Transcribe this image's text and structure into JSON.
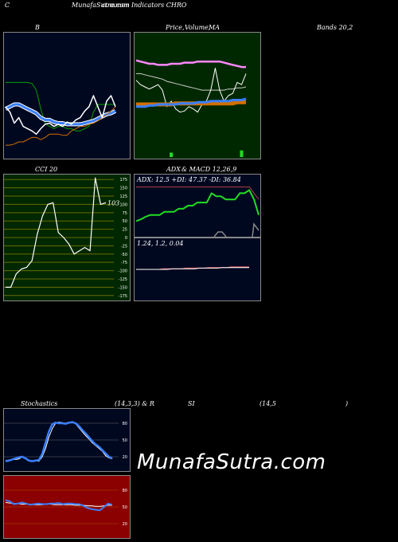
{
  "header": {
    "left": "C",
    "title": "MunafaSutra.com",
    "subtitle": "common Indicators CHRO"
  },
  "labels": {
    "bb": "B",
    "price": "Price,",
    "volume": "Volume,",
    "ma": "MA",
    "bands": "Bands 20,2",
    "cci": "CCI 20",
    "adx": "ADX",
    "macd": "& MACD 12,26,9",
    "stoch": "Stochastics",
    "stoch_params": "(14,3,3) & R",
    "si": "SI",
    "rsi_params": "(14,5",
    "close_paren": ")"
  },
  "watermark": "MunafaSutra.com",
  "colors": {
    "bb_bg": "#000820",
    "ma_bg": "#002800",
    "cci_bg": "#002800",
    "adx_bg": "#000820",
    "stoch_bg": "#000820",
    "rsi_bg": "#8b0000",
    "blue": "#3a7fff",
    "green": "#22dd22",
    "orange": "#d07000",
    "white": "#ffffff"
  },
  "chart_data": [
    {
      "type": "line",
      "name": "bollinger-bands",
      "series": [
        {
          "values": [
            0.62,
            0.62,
            0.62,
            0.62,
            0.62,
            0.62,
            0.61,
            0.55,
            0.38,
            0.25,
            0.22,
            0.2,
            0.22,
            0.22,
            0.2,
            0.2,
            0.18,
            0.18,
            0.2,
            0.22,
            0.35,
            0.42,
            0.42,
            0.42,
            0.42,
            0.42
          ]
        },
        {
          "values": [
            0.38,
            0.4,
            0.42,
            0.42,
            0.4,
            0.38,
            0.36,
            0.34,
            0.3,
            0.28,
            0.28,
            0.26,
            0.25,
            0.25,
            0.24,
            0.24,
            0.24,
            0.24,
            0.25,
            0.26,
            0.27,
            0.29,
            0.31,
            0.33,
            0.34,
            0.36
          ]
        },
        {
          "values": [
            0.18,
            0.18,
            0.17,
            0.16,
            0.16,
            0.15,
            0.14,
            0.12,
            0.1,
            0.1,
            0.12,
            0.1,
            0.09,
            0.08,
            0.09,
            0.1,
            0.11,
            0.12,
            0.14,
            0.16,
            0.17,
            0.18,
            0.2,
            0.21,
            0.22,
            0.24
          ]
        },
        {
          "values": [
            0.05,
            0.05,
            0.06,
            0.08,
            0.08,
            0.1,
            0.12,
            0.12,
            0.1,
            0.12,
            0.15,
            0.15,
            0.15,
            0.14,
            0.14,
            0.18,
            0.2,
            0.22,
            0.22,
            0.24,
            0.25,
            0.27,
            0.3,
            0.33,
            0.36,
            0.4
          ]
        },
        {
          "values": [
            0.4,
            0.35,
            0.25,
            0.3,
            0.22,
            0.2,
            0.18,
            0.15,
            0.2,
            0.24,
            0.25,
            0.22,
            0.24,
            0.22,
            0.26,
            0.24,
            0.28,
            0.3,
            0.36,
            0.4,
            0.5,
            0.4,
            0.3,
            0.45,
            0.5,
            0.4
          ]
        }
      ]
    },
    {
      "type": "line",
      "name": "price-volume-ma",
      "series": [
        {
          "values": [
            0.82,
            0.81,
            0.8,
            0.79,
            0.79,
            0.78,
            0.78,
            0.78,
            0.79,
            0.79,
            0.79,
            0.8,
            0.8,
            0.8,
            0.81,
            0.81,
            0.81,
            0.81,
            0.81,
            0.81,
            0.8,
            0.79,
            0.78,
            0.77,
            0.76,
            0.76
          ]
        },
        {
          "values": [
            0.7,
            0.7,
            0.69,
            0.68,
            0.67,
            0.66,
            0.65,
            0.63,
            0.62,
            0.61,
            0.6,
            0.59,
            0.58,
            0.57,
            0.56,
            0.55,
            0.55,
            0.55,
            0.55,
            0.55,
            0.55,
            0.56,
            0.56,
            0.57,
            0.57,
            0.58
          ]
        },
        {
          "values": [
            0.64,
            0.6,
            0.58,
            0.56,
            0.58,
            0.6,
            0.55,
            0.4,
            0.45,
            0.38,
            0.35,
            0.36,
            0.4,
            0.38,
            0.35,
            0.42,
            0.45,
            0.55,
            0.75,
            0.55,
            0.45,
            0.5,
            0.52,
            0.62,
            0.6,
            0.7
          ]
        },
        {
          "values": [
            0.42,
            0.42,
            0.42,
            0.42,
            0.42,
            0.42,
            0.42,
            0.42,
            0.42,
            0.43,
            0.43,
            0.43,
            0.43,
            0.43,
            0.43,
            0.43,
            0.43,
            0.43,
            0.43,
            0.43,
            0.43,
            0.43,
            0.43,
            0.44,
            0.44,
            0.44
          ]
        },
        {
          "values": [
            0.4,
            0.4,
            0.4,
            0.41,
            0.41,
            0.42,
            0.42,
            0.42,
            0.42,
            0.42,
            0.43,
            0.43,
            0.43,
            0.43,
            0.44,
            0.44,
            0.44,
            0.45,
            0.45,
            0.45,
            0.45,
            0.45,
            0.46,
            0.46,
            0.46,
            0.47
          ]
        },
        {
          "values": [
            0.0,
            0.0,
            0.0,
            0.0,
            0.0,
            0.0,
            0.0,
            0.0,
            0.04,
            0.0,
            0.0,
            0.0,
            0.0,
            0.0,
            0.0,
            0.0,
            0.0,
            0.0,
            0.0,
            0.0,
            0.0,
            0.0,
            0.0,
            0.0,
            0.06,
            0.0
          ]
        }
      ]
    },
    {
      "type": "line",
      "name": "cci",
      "y_ticks": [
        175,
        150,
        125,
        100,
        75,
        50,
        25,
        0,
        -25,
        -50,
        -75,
        -100,
        -125,
        -150,
        -175
      ],
      "ylim": [
        -190,
        190
      ],
      "last_value_label": "103",
      "series": [
        {
          "values": [
            -150,
            -150,
            -110,
            -95,
            -90,
            -70,
            10,
            65,
            100,
            105,
            15,
            0,
            -20,
            -50,
            -40,
            -30,
            -40,
            180,
            100,
            105
          ]
        }
      ]
    },
    {
      "type": "line",
      "name": "adx",
      "title": "ADX: 12.5 +DI: 47.37 -DI: 36.84",
      "series": [
        {
          "values": [
            0.25,
            0.28,
            0.32,
            0.35,
            0.35,
            0.35,
            0.4,
            0.4,
            0.4,
            0.45,
            0.45,
            0.5,
            0.5,
            0.55,
            0.55,
            0.55,
            0.7,
            0.65,
            0.65,
            0.6,
            0.6,
            0.6,
            0.7,
            0.7,
            0.75,
            0.6,
            0.35
          ]
        },
        {
          "values": [
            0.8,
            0.8,
            0.8,
            0.8,
            0.8,
            0.8,
            0.8,
            0.8,
            0.8,
            0.8,
            0.8,
            0.8,
            0.8,
            0.8,
            0.8,
            0.8,
            0.8,
            0.8,
            0.8,
            0.8,
            0.8,
            0.8,
            0.8,
            0.8,
            0.8,
            0.7,
            0.6
          ]
        }
      ]
    },
    {
      "type": "line",
      "name": "macd",
      "title": "1.24,  1.2,  0.04",
      "series": [
        {
          "values": [
            0.5,
            0.5,
            0.5,
            0.5,
            0.5,
            0.5,
            0.51,
            0.51,
            0.51,
            0.51,
            0.51,
            0.52,
            0.52,
            0.52,
            0.52,
            0.52,
            0.53,
            0.53,
            0.53,
            0.53,
            0.53,
            0.54,
            0.54,
            0.54,
            0.54,
            0.54
          ]
        },
        {
          "values": [
            0.5,
            0.5,
            0.5,
            0.5,
            0.5,
            0.5,
            0.5,
            0.5,
            0.51,
            0.51,
            0.51,
            0.51,
            0.51,
            0.51,
            0.52,
            0.52,
            0.52,
            0.52,
            0.52,
            0.53,
            0.53,
            0.53,
            0.53,
            0.53,
            0.53,
            0.53
          ]
        }
      ]
    },
    {
      "type": "line",
      "name": "stochastics",
      "y_ticks": [
        80,
        50,
        20
      ],
      "ylim": [
        0,
        100
      ],
      "series": [
        {
          "values": [
            13,
            14,
            15,
            15,
            16,
            20,
            18,
            14,
            12,
            13,
            12,
            20,
            35,
            55,
            70,
            80,
            82,
            81,
            80,
            82,
            82,
            79,
            72,
            65,
            58,
            52,
            45,
            40,
            35,
            30,
            22,
            18,
            16
          ]
        },
        {
          "values": [
            12,
            13,
            15,
            17,
            19,
            20,
            17,
            13,
            12,
            13,
            14,
            25,
            45,
            65,
            78,
            81,
            80,
            80,
            79,
            81,
            82,
            80,
            75,
            68,
            62,
            55,
            48,
            42,
            38,
            32,
            26,
            20,
            17
          ]
        }
      ]
    },
    {
      "type": "line",
      "name": "rsi",
      "y_ticks": [
        80,
        50,
        20
      ],
      "ylim": [
        0,
        100
      ],
      "series": [
        {
          "values": [
            62,
            60,
            55,
            56,
            58,
            56,
            54,
            55,
            56,
            55,
            55,
            56,
            56,
            57,
            55,
            56,
            56,
            55,
            55,
            52,
            48,
            46,
            45,
            44,
            50,
            56,
            54
          ]
        },
        {
          "values": [
            58,
            57,
            56,
            56,
            55,
            55,
            55,
            54,
            54,
            54,
            55,
            55,
            54,
            54,
            54,
            54,
            54,
            53,
            53,
            53,
            52,
            52,
            51,
            51,
            52,
            53,
            53
          ]
        }
      ]
    }
  ]
}
